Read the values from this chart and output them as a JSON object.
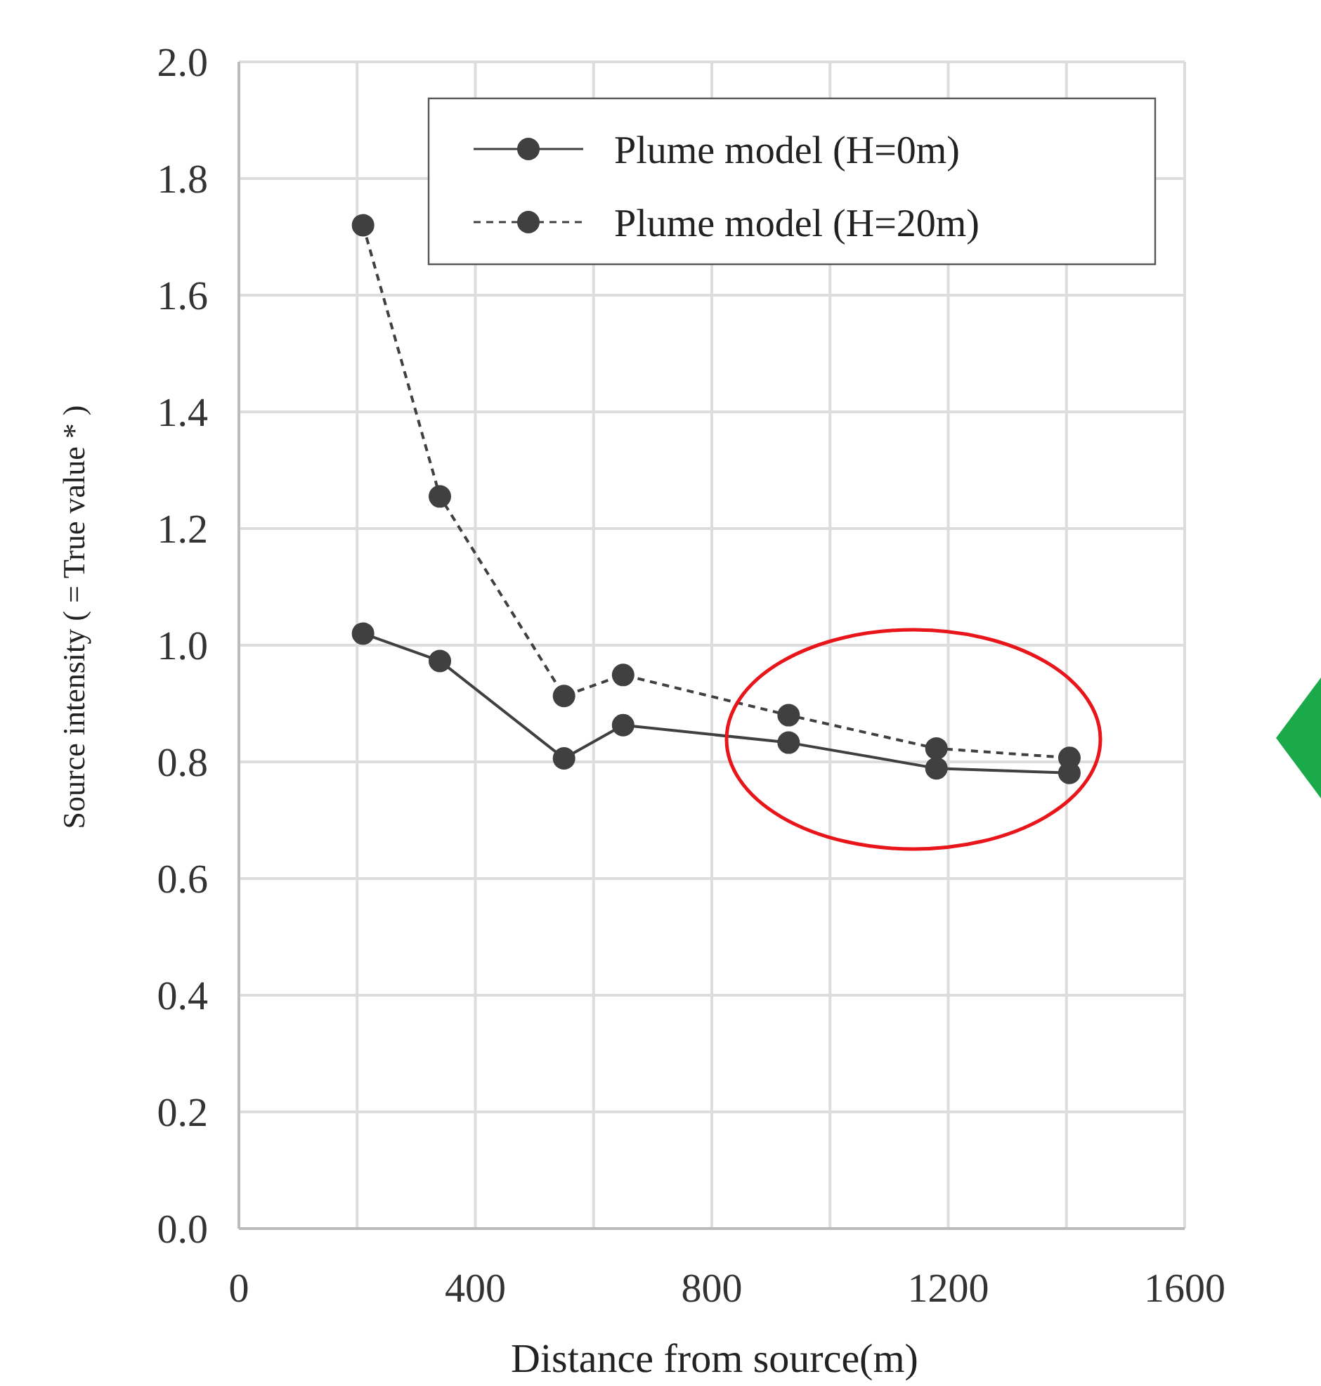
{
  "chart_data": {
    "type": "line",
    "xlabel": "Distance from source(m)",
    "ylabel": "Source intensity ( = True value * )",
    "x": [
      210,
      340,
      550,
      650,
      930,
      1180,
      1405
    ],
    "series": [
      {
        "name": "Plume model (H=0m)",
        "color": "#404040",
        "line_style": "solid",
        "values": [
          1.02,
          0.973,
          0.806,
          0.863,
          0.833,
          0.789,
          0.781
        ]
      },
      {
        "name": "Plume model (H=20m)",
        "color": "#404040",
        "line_style": "dashed",
        "values": [
          1.72,
          1.255,
          0.913,
          0.949,
          0.88,
          0.823,
          0.807
        ]
      }
    ],
    "xlim": [
      0,
      1600
    ],
    "xticks": [
      0,
      {
        "value": 200,
        "label": null
      },
      400,
      {
        "value": 600,
        "label": null
      },
      800,
      {
        "value": 1000,
        "label": null
      },
      1200,
      {
        "value": 1400,
        "label": null
      },
      1600
    ],
    "ylim": [
      0,
      2
    ],
    "yticks": [
      {
        "value": 0,
        "label": "0.0"
      },
      {
        "value": 0.2,
        "label": "0.2"
      },
      {
        "value": 0.4,
        "label": "0.4"
      },
      {
        "value": 0.6,
        "label": "0.6"
      },
      {
        "value": 0.8,
        "label": "0.8"
      },
      {
        "value": 1,
        "label": "1.0"
      },
      {
        "value": 1.2,
        "label": "1.2"
      },
      {
        "value": 1.4,
        "label": "1.4"
      },
      {
        "value": 1.6,
        "label": "1.6"
      },
      {
        "value": 1.8,
        "label": "1.8"
      },
      {
        "value": 2,
        "label": "2.0"
      }
    ],
    "grid": true,
    "marker": "circle",
    "legend": "top right"
  }
}
